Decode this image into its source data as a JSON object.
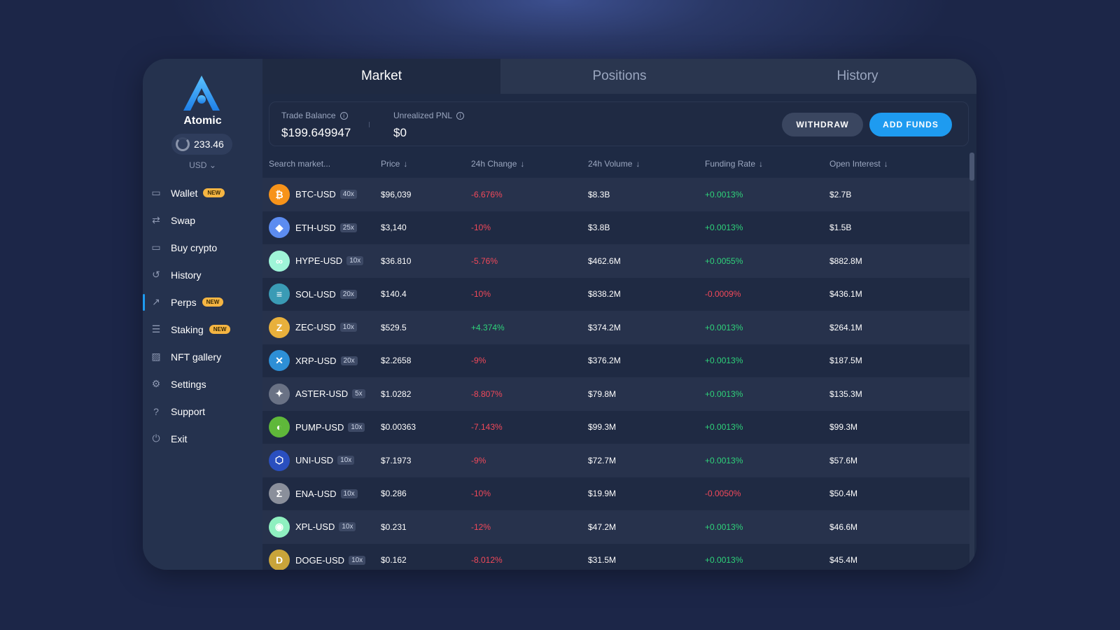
{
  "sidebar": {
    "brand": "Atomic",
    "balance": "233.46",
    "currency": "USD",
    "items": [
      {
        "label": "Wallet",
        "icon": "wallet-icon",
        "badge": "NEW",
        "active": false
      },
      {
        "label": "Swap",
        "icon": "swap-icon",
        "badge": "",
        "active": false
      },
      {
        "label": "Buy crypto",
        "icon": "card-icon",
        "badge": "",
        "active": false
      },
      {
        "label": "History",
        "icon": "history-icon",
        "badge": "",
        "active": false
      },
      {
        "label": "Perps",
        "icon": "chart-icon",
        "badge": "NEW",
        "active": true
      },
      {
        "label": "Staking",
        "icon": "staking-icon",
        "badge": "NEW",
        "active": false
      },
      {
        "label": "NFT gallery",
        "icon": "image-icon",
        "badge": "",
        "active": false
      },
      {
        "label": "Settings",
        "icon": "gear-icon",
        "badge": "",
        "active": false
      },
      {
        "label": "Support",
        "icon": "question-icon",
        "badge": "",
        "active": false
      },
      {
        "label": "Exit",
        "icon": "power-icon",
        "badge": "",
        "active": false
      }
    ]
  },
  "tabs": [
    {
      "label": "Market",
      "active": true
    },
    {
      "label": "Positions",
      "active": false
    },
    {
      "label": "History",
      "active": false
    }
  ],
  "balances": {
    "trade_balance_label": "Trade Balance",
    "trade_balance": "$199.649947",
    "pnl_label": "Unrealized PNL",
    "pnl": "$0",
    "withdraw_label": "WITHDRAW",
    "add_funds_label": "ADD FUNDS"
  },
  "table": {
    "search_placeholder": "Search market...",
    "columns": [
      "Price",
      "24h Change",
      "24h Volume",
      "Funding Rate",
      "Open Interest"
    ],
    "sort_arrow": "↓",
    "rows": [
      {
        "symbol": "BTC-USD",
        "leverage": "40x",
        "price": "$96,039",
        "change": "-6.676%",
        "volume": "$8.3B",
        "funding": "+0.0013%",
        "oi": "$2.7B",
        "icon": "bitcoin-icon",
        "glyph": "₿",
        "color": "#f7931a"
      },
      {
        "symbol": "ETH-USD",
        "leverage": "25x",
        "price": "$3,140",
        "change": "-10%",
        "volume": "$3.8B",
        "funding": "+0.0013%",
        "oi": "$1.5B",
        "icon": "ethereum-icon",
        "glyph": "◆",
        "color": "#5c8cf0"
      },
      {
        "symbol": "HYPE-USD",
        "leverage": "10x",
        "price": "$36.810",
        "change": "-5.76%",
        "volume": "$462.6M",
        "funding": "+0.0055%",
        "oi": "$882.8M",
        "icon": "hype-icon",
        "glyph": "∞",
        "color": "#9ff5d8"
      },
      {
        "symbol": "SOL-USD",
        "leverage": "20x",
        "price": "$140.4",
        "change": "-10%",
        "volume": "$838.2M",
        "funding": "-0.0009%",
        "oi": "$436.1M",
        "icon": "solana-icon",
        "glyph": "≡",
        "color": "#3a9bb5"
      },
      {
        "symbol": "ZEC-USD",
        "leverage": "10x",
        "price": "$529.5",
        "change": "+4.374%",
        "volume": "$374.2M",
        "funding": "+0.0013%",
        "oi": "$264.1M",
        "icon": "zcash-icon",
        "glyph": "Z",
        "color": "#e8b03c"
      },
      {
        "symbol": "XRP-USD",
        "leverage": "20x",
        "price": "$2.2658",
        "change": "-9%",
        "volume": "$376.2M",
        "funding": "+0.0013%",
        "oi": "$187.5M",
        "icon": "xrp-icon",
        "glyph": "✕",
        "color": "#2d8fd6"
      },
      {
        "symbol": "ASTER-USD",
        "leverage": "5x",
        "price": "$1.0282",
        "change": "-8.807%",
        "volume": "$79.8M",
        "funding": "+0.0013%",
        "oi": "$135.3M",
        "icon": "aster-icon",
        "glyph": "✦",
        "color": "#6a7285"
      },
      {
        "symbol": "PUMP-USD",
        "leverage": "10x",
        "price": "$0.00363",
        "change": "-7.143%",
        "volume": "$99.3M",
        "funding": "+0.0013%",
        "oi": "$99.3M",
        "icon": "pump-icon",
        "glyph": "◐",
        "color": "#5fb83a"
      },
      {
        "symbol": "UNI-USD",
        "leverage": "10x",
        "price": "$7.1973",
        "change": "-9%",
        "volume": "$72.7M",
        "funding": "+0.0013%",
        "oi": "$57.6M",
        "icon": "uni-icon",
        "glyph": "⬡",
        "color": "#2a4fbf"
      },
      {
        "symbol": "ENA-USD",
        "leverage": "10x",
        "price": "$0.286",
        "change": "-10%",
        "volume": "$19.9M",
        "funding": "-0.0050%",
        "oi": "$50.4M",
        "icon": "ena-icon",
        "glyph": "Σ",
        "color": "#8a8f9b"
      },
      {
        "symbol": "XPL-USD",
        "leverage": "10x",
        "price": "$0.231",
        "change": "-12%",
        "volume": "$47.2M",
        "funding": "+0.0013%",
        "oi": "$46.6M",
        "icon": "xpl-icon",
        "glyph": "◉",
        "color": "#8ff0c0"
      },
      {
        "symbol": "DOGE-USD",
        "leverage": "10x",
        "price": "$0.162",
        "change": "-8.012%",
        "volume": "$31.5M",
        "funding": "+0.0013%",
        "oi": "$45.4M",
        "icon": "doge-icon",
        "glyph": "D",
        "color": "#c9a43a"
      }
    ]
  }
}
